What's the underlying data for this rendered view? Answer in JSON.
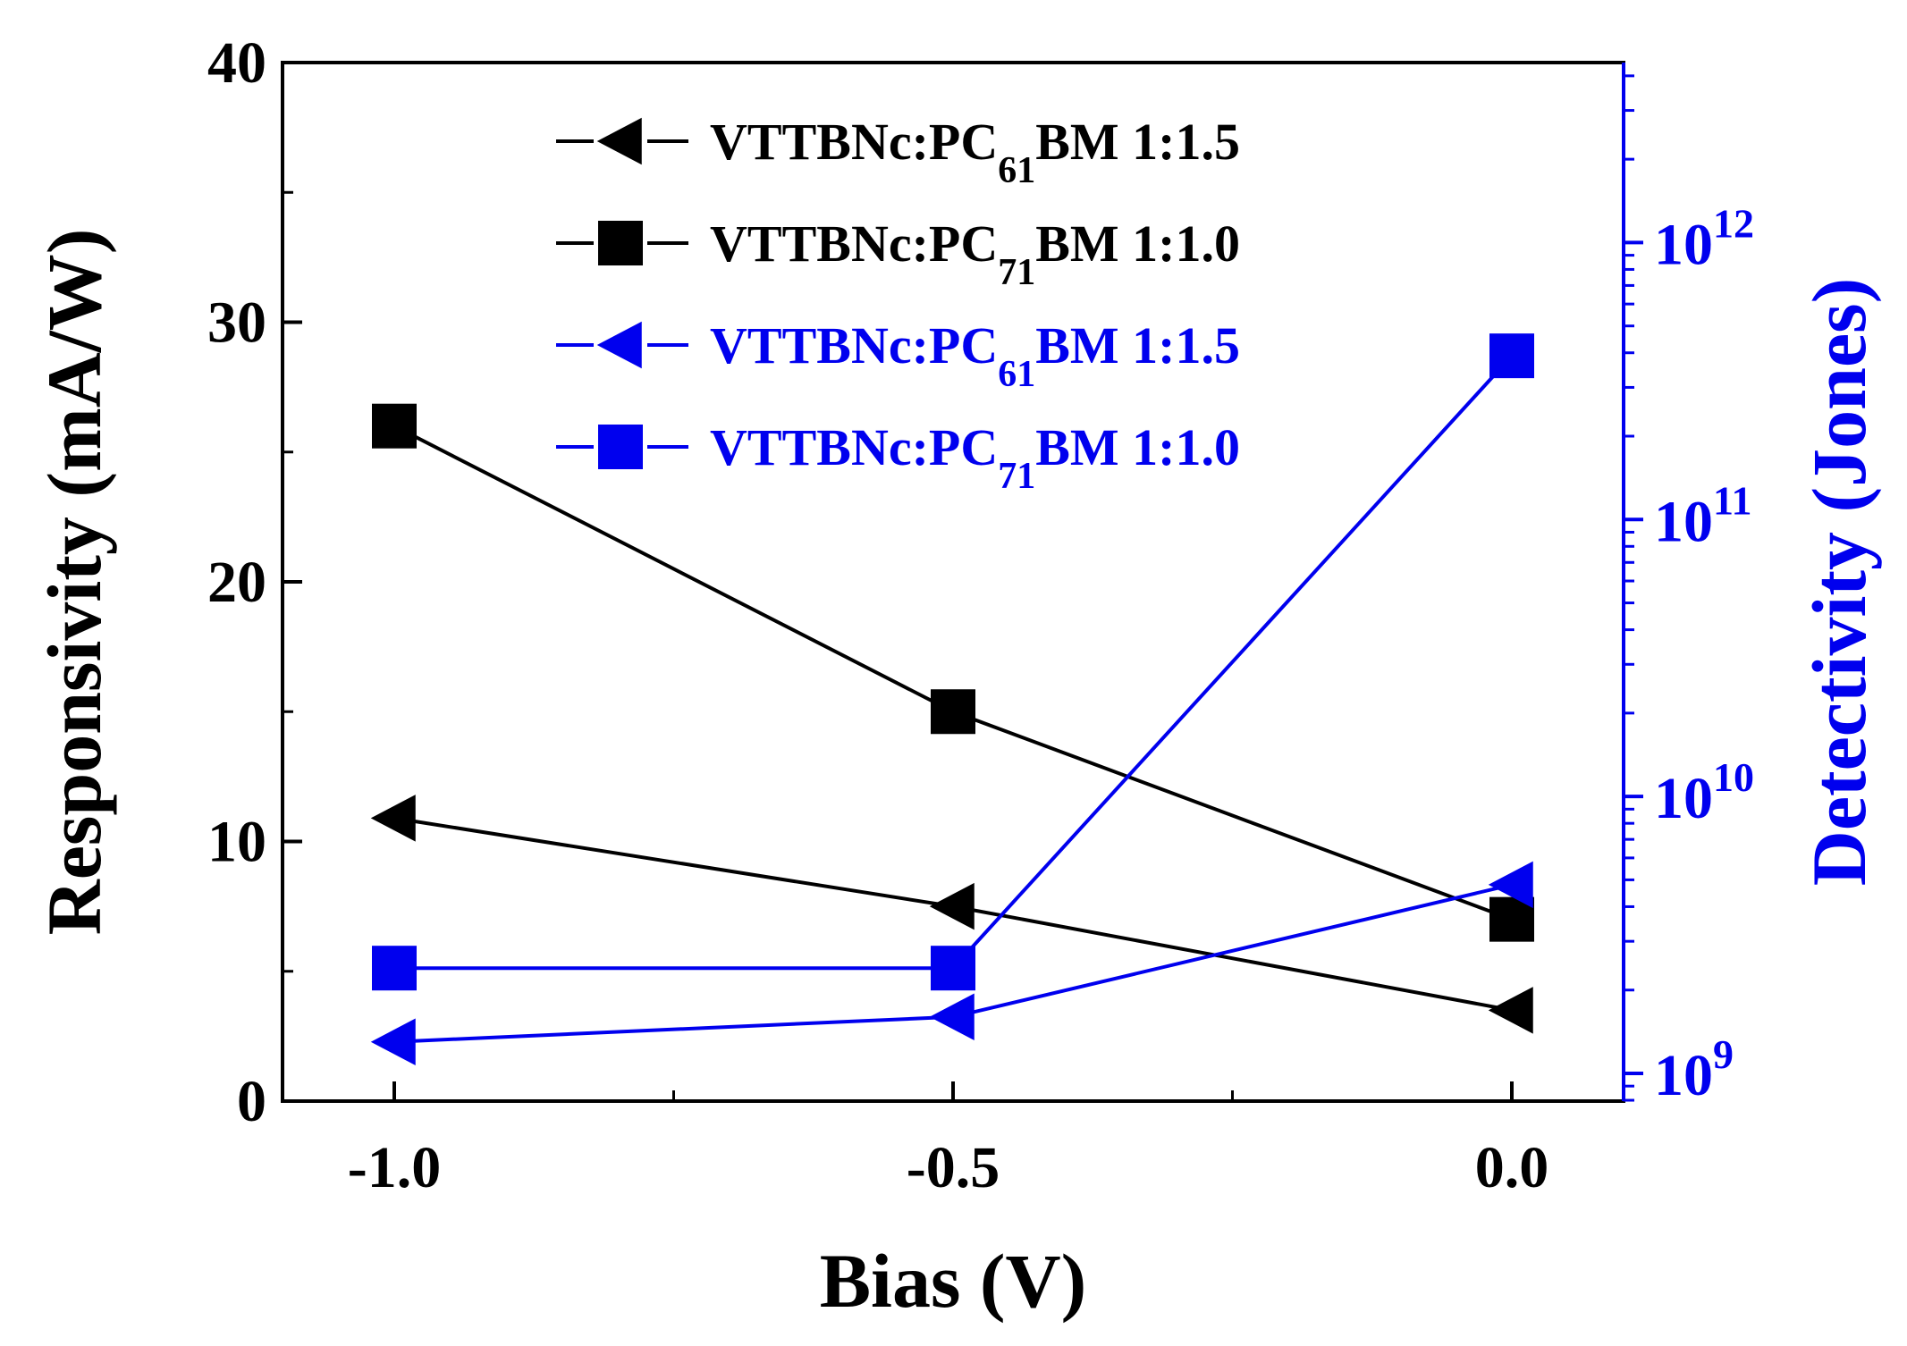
{
  "chart_data": {
    "type": "line",
    "title": "",
    "xlabel": "Bias (V)",
    "ylabel": "Responsivity (mA/W)",
    "y2label": "Detectivity (Jones)",
    "xlim": [
      -1.1,
      0.1
    ],
    "ylim": [
      0,
      40
    ],
    "y2lim_log10": [
      8.9,
      12.65
    ],
    "x_ticks": [
      -1.0,
      -0.5,
      0.0
    ],
    "x_tick_labels": [
      "-1.0",
      "-0.5",
      "0.0"
    ],
    "y_ticks": [
      0,
      10,
      20,
      30,
      40
    ],
    "y_tick_labels": [
      "0",
      "10",
      "20",
      "30",
      "40"
    ],
    "y2_ticks_log10": [
      9,
      10,
      11,
      12
    ],
    "y2_tick_labels": [
      {
        "base": "10",
        "exp": "9"
      },
      {
        "base": "10",
        "exp": "10"
      },
      {
        "base": "10",
        "exp": "11"
      },
      {
        "base": "10",
        "exp": "12"
      }
    ],
    "legend_position": "top-center",
    "colors": {
      "black": "#000000",
      "blue": "#0000ee"
    },
    "series": [
      {
        "name": "VTTBNc:PC61BM 1:1.5",
        "label_main": "VTTBNc:PC",
        "label_sub": "61",
        "label_tail": "BM 1:1.5",
        "axis": "left",
        "marker": "triangle-left",
        "color": "#000000",
        "x": [
          -1.0,
          -0.5,
          0.0
        ],
        "values": [
          10.9,
          7.5,
          3.5
        ]
      },
      {
        "name": "VTTBNc:PC71BM 1:1.0",
        "label_main": "VTTBNc:PC",
        "label_sub": "71",
        "label_tail": "BM 1:1.0",
        "axis": "left",
        "marker": "square",
        "color": "#000000",
        "x": [
          -1.0,
          -0.5,
          0.0
        ],
        "values": [
          26.0,
          15.0,
          7.0
        ]
      },
      {
        "name": "VTTBNc:PC61BM 1:1.5",
        "label_main": "VTTBNc:PC",
        "label_sub": "61",
        "label_tail": "BM 1:1.5",
        "axis": "right",
        "marker": "triangle-left",
        "color": "#0000ee",
        "x": [
          -1.0,
          -0.5,
          0.0
        ],
        "values": [
          1300000000.0,
          1600000000.0,
          4800000000.0
        ]
      },
      {
        "name": "VTTBNc:PC71BM 1:1.0",
        "label_main": "VTTBNc:PC",
        "label_sub": "71",
        "label_tail": "BM 1:1.0",
        "axis": "right",
        "marker": "square",
        "color": "#0000ee",
        "x": [
          -1.0,
          -0.5,
          0.0
        ],
        "values": [
          2400000000.0,
          2400000000.0,
          390000000000.0
        ]
      }
    ]
  }
}
